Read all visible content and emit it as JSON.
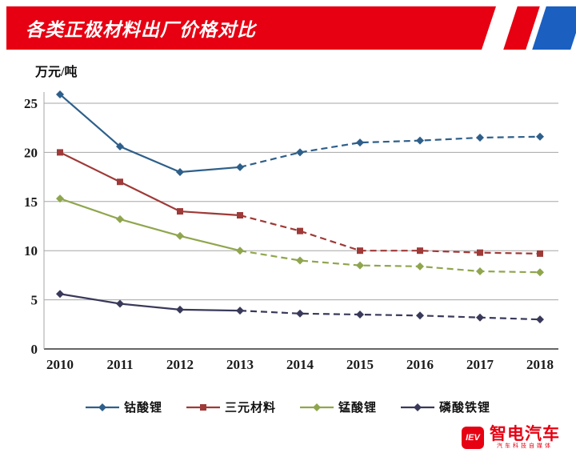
{
  "header": {
    "title": "各类正极材料出厂价格对比"
  },
  "chart_data": {
    "type": "line",
    "title": "各类正极材料出厂价格对比",
    "ylabel": "万元/吨",
    "xlabel": "",
    "x": [
      2010,
      2011,
      2012,
      2013,
      2014,
      2015,
      2016,
      2017,
      2018
    ],
    "yticks": [
      0,
      5,
      10,
      15,
      20,
      25
    ],
    "ylim": [
      0,
      25
    ],
    "grid": true,
    "legend_position": "bottom",
    "solid_until_index": 3,
    "series": [
      {
        "name": "钴酸锂",
        "marker": "diamond",
        "color": "#2e5f8a",
        "values": [
          25.9,
          20.6,
          18.0,
          18.5,
          20.0,
          21.0,
          21.2,
          21.5,
          21.6
        ]
      },
      {
        "name": "三元材料",
        "marker": "square",
        "color": "#9e3a38",
        "values": [
          20.0,
          17.0,
          14.0,
          13.6,
          12.0,
          10.0,
          10.0,
          9.8,
          9.7
        ]
      },
      {
        "name": "锰酸锂",
        "marker": "diamond",
        "color": "#8fa64e",
        "values": [
          15.3,
          13.2,
          11.5,
          10.0,
          9.0,
          8.5,
          8.4,
          7.9,
          7.8
        ]
      },
      {
        "name": "磷酸铁锂",
        "marker": "diamond",
        "color": "#39395a",
        "values": [
          5.6,
          4.6,
          4.0,
          3.9,
          3.6,
          3.5,
          3.4,
          3.2,
          3.0
        ]
      }
    ]
  },
  "colors": {
    "banner_red": "#e60012",
    "stripe_blue": "#1b5fc1",
    "grid": "#a6a6a6",
    "axis": "#333333"
  },
  "logo": {
    "badge": "IEV",
    "brand": "智电汽车",
    "tagline": "汽车科技自媒体"
  }
}
